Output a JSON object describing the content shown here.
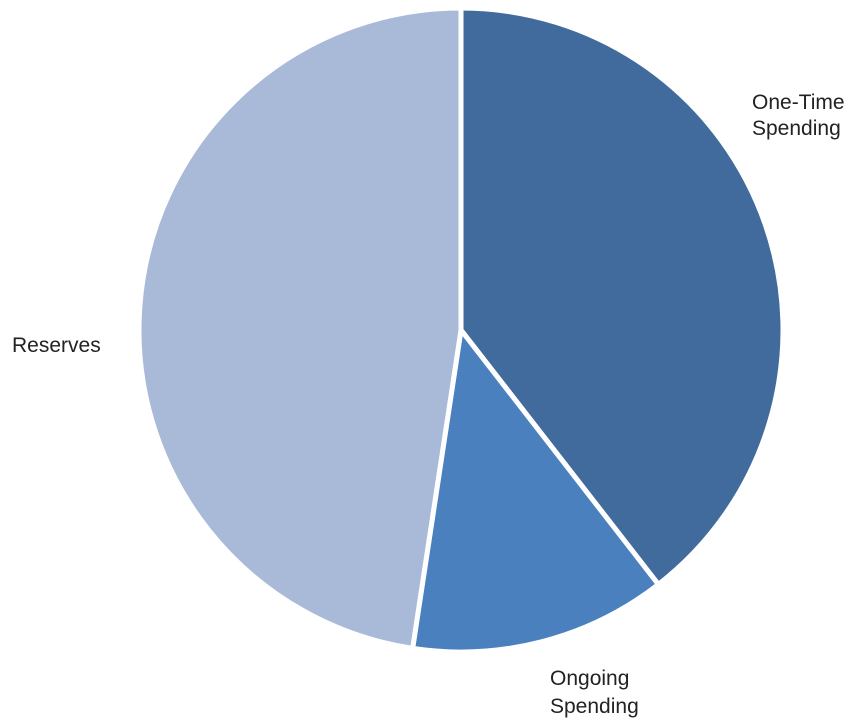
{
  "chart_data": {
    "type": "pie",
    "title": "",
    "slices": [
      {
        "label": "One-Time Spending",
        "label_lines": [
          "One-Time",
          "Spending"
        ],
        "value": 39.5,
        "color": "#416b9c"
      },
      {
        "label": "Ongoing Spending",
        "label_lines": [
          "Ongoing",
          "Spending"
        ],
        "value": 12.9,
        "color": "#4b80bf"
      },
      {
        "label": "Reserves",
        "label_lines": [
          "Reserves"
        ],
        "value": 47.6,
        "color": "#a9b9d8"
      }
    ],
    "start_angle": "top",
    "direction": "clockwise",
    "slice_border_color": "#ffffff",
    "legend": "none"
  }
}
